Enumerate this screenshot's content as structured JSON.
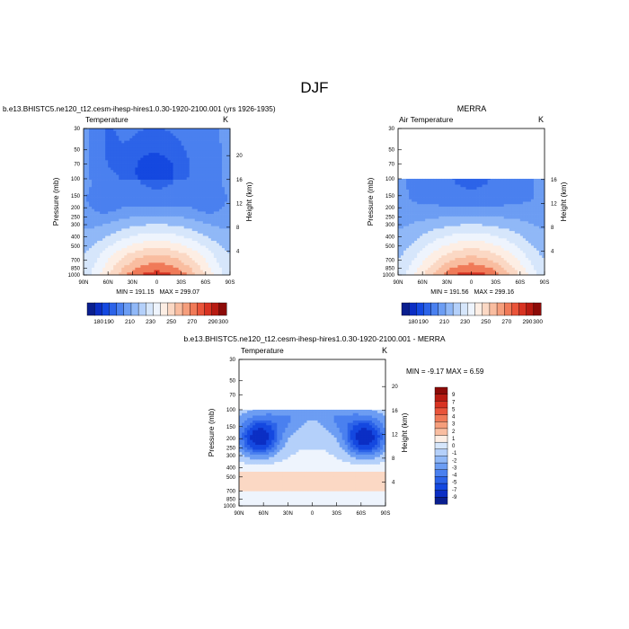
{
  "figure": {
    "title": "DJF",
    "palette": [
      "#0a1f8f",
      "#0b2ec4",
      "#1448e0",
      "#2c63e8",
      "#4a80ef",
      "#6c9df3",
      "#90b8f7",
      "#b4d0fa",
      "#d6e6fb",
      "#eef4fd",
      "#fdeee4",
      "#fbd8c4",
      "#f9bda0",
      "#f59e7c",
      "#f07a58",
      "#e9543a",
      "#d83322",
      "#b81b12",
      "#8c0b08"
    ],
    "colorbar_labels": [
      "180",
      "190",
      "200",
      "210",
      "220",
      "230",
      "240",
      "250",
      "260",
      "270",
      "280",
      "290",
      "300"
    ],
    "diff_colorbar_labels": [
      "9",
      "7",
      "5",
      "4",
      "3",
      "2",
      "1",
      "0",
      "-1",
      "-2",
      "-3",
      "-4",
      "-5",
      "-7",
      "-9"
    ]
  },
  "chart_data": [
    {
      "type": "heatmap",
      "panel_id": "model",
      "run_label": "b.e13.BHISTC5.ne120_t12.cesm-ihesp-hires1.0.30-1920-2100.001 (yrs 1926-1935)",
      "title": "Temperature",
      "units": "K",
      "ylabel": "Pressure (mb)",
      "ylabel_right": "Height (km)",
      "x_ticks": [
        "90N",
        "60N",
        "30N",
        "0",
        "30S",
        "60S",
        "90S"
      ],
      "y_ticks": [
        "30",
        "50",
        "70",
        "100",
        "150",
        "200",
        "250",
        "300",
        "400",
        "500",
        "700",
        "850",
        "1000"
      ],
      "height_ticks": [
        "4",
        "8",
        "12",
        "16",
        "20"
      ],
      "min_label": "MIN = 191.15",
      "max_label": "MAX = 299.07",
      "min": 191.15,
      "max": 299.07,
      "data_top_mb": 30,
      "colorbar": "full"
    },
    {
      "type": "heatmap",
      "panel_id": "obs",
      "run_label": "MERRA",
      "title": "Air Temperature",
      "units": "K",
      "ylabel": "Pressure (mb)",
      "ylabel_right": "Height (km)",
      "x_ticks": [
        "90N",
        "60N",
        "30N",
        "0",
        "30S",
        "60S",
        "90S"
      ],
      "y_ticks": [
        "30",
        "50",
        "70",
        "100",
        "150",
        "200",
        "250",
        "300",
        "400",
        "500",
        "700",
        "850",
        "1000"
      ],
      "height_ticks": [
        "4",
        "8",
        "12",
        "16"
      ],
      "min_label": "MIN = 191.56",
      "max_label": "MAX = 299.16",
      "min": 191.56,
      "max": 299.16,
      "data_top_mb": 100,
      "colorbar": "full"
    },
    {
      "type": "heatmap",
      "panel_id": "diff",
      "run_label": "b.e13.BHISTC5.ne120_t12.cesm-ihesp-hires1.0.30-1920-2100.001 - MERRA",
      "title": "Temperature",
      "units": "K",
      "ylabel": "Pressure (mb)",
      "ylabel_right": "Height (km)",
      "x_ticks": [
        "90N",
        "60N",
        "30N",
        "0",
        "30S",
        "60S",
        "90S"
      ],
      "y_ticks": [
        "30",
        "50",
        "70",
        "100",
        "150",
        "200",
        "250",
        "300",
        "400",
        "500",
        "700",
        "850",
        "1000"
      ],
      "height_ticks": [
        "4",
        "8",
        "12",
        "16",
        "20"
      ],
      "minmax_label": "MIN = -9.17  MAX =  6.59",
      "min": -9.17,
      "max": 6.59,
      "data_top_mb": 100,
      "colorbar": "diff"
    }
  ]
}
